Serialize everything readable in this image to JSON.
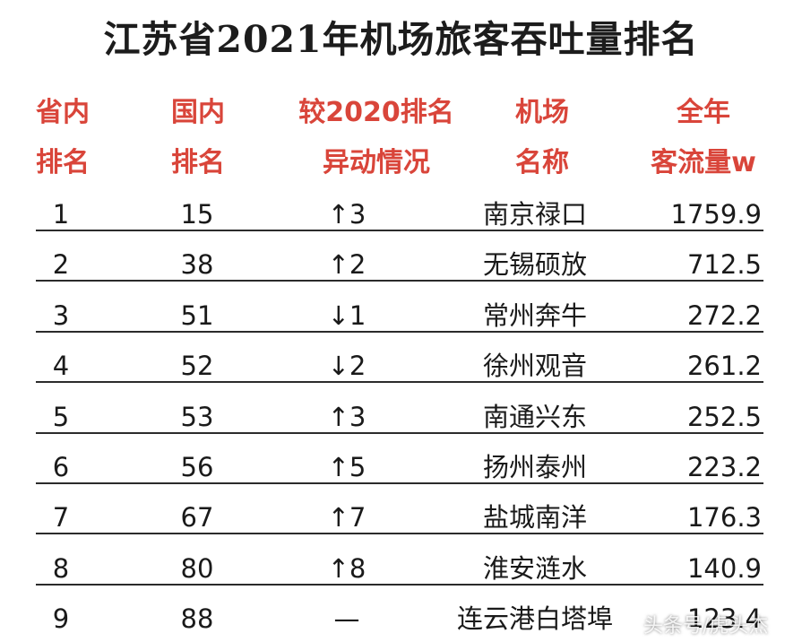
{
  "title": "江苏省2021年机场旅客吞吐量排名",
  "headers": [
    {
      "line1": "省内",
      "line2": "排名"
    },
    {
      "line1": "国内",
      "line2": "排名"
    },
    {
      "line1": "较2020排名",
      "line2": "异动情况"
    },
    {
      "line1": "机场",
      "line2": "名称"
    },
    {
      "line1": "全年",
      "line2": "客流量w"
    }
  ],
  "rows": [
    {
      "rank": "1",
      "national": "15",
      "change": "↑3",
      "name": "南京禄口",
      "volume": "1759.9"
    },
    {
      "rank": "2",
      "national": "38",
      "change": "↑2",
      "name": "无锡硕放",
      "volume": "712.5"
    },
    {
      "rank": "3",
      "national": "51",
      "change": "↓1",
      "name": "常州奔牛",
      "volume": "272.2"
    },
    {
      "rank": "4",
      "national": "52",
      "change": "↓2",
      "name": "徐州观音",
      "volume": "261.2"
    },
    {
      "rank": "5",
      "national": "53",
      "change": "↑3",
      "name": "南通兴东",
      "volume": "252.5"
    },
    {
      "rank": "6",
      "national": "56",
      "change": "↑5",
      "name": "扬州泰州",
      "volume": "223.2"
    },
    {
      "rank": "7",
      "national": "67",
      "change": "↑7",
      "name": "盐城南洋",
      "volume": "176.3"
    },
    {
      "rank": "8",
      "national": "80",
      "change": "↑8",
      "name": "淮安涟水",
      "volume": "140.9"
    },
    {
      "rank": "9",
      "national": "88",
      "change": "—",
      "name": "连云港白塔埠",
      "volume": "123.4"
    }
  ],
  "watermark": "头条号/虎头杰"
}
